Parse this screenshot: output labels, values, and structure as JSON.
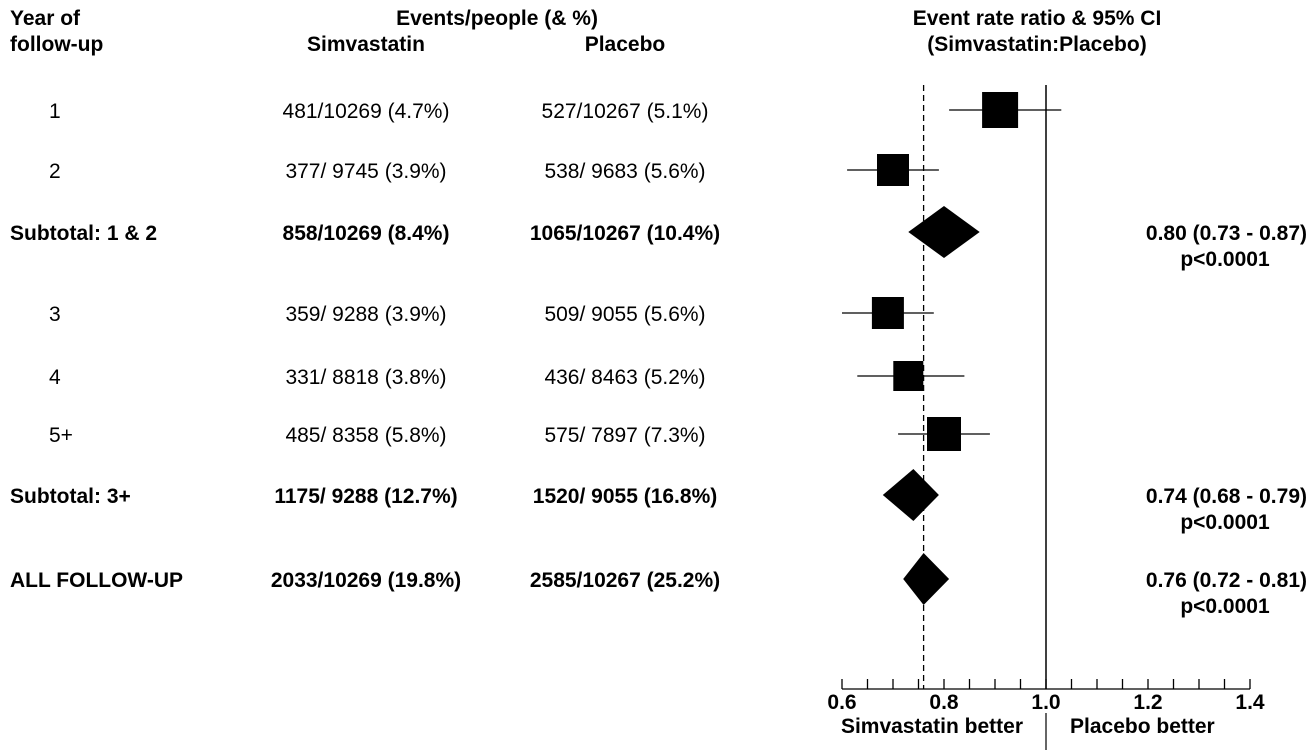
{
  "chart_data": {
    "type": "forest",
    "headers": {
      "year_col": [
        "Year of",
        "follow-up"
      ],
      "events_group": "Events/people (& %)",
      "simvastatin_col": "Simvastatin",
      "placebo_col": "Placebo",
      "ratio_title": [
        "Event rate ratio & 95% CI",
        "(Simvastatin:Placebo)"
      ]
    },
    "rows": [
      {
        "label": "1",
        "kind": "square",
        "bold": false,
        "simvastatin": "481/10269 (4.7%)",
        "placebo": "527/10267 (5.1%)",
        "estimate": 0.91,
        "ci_low": 0.81,
        "ci_high": 1.03,
        "marker_size": 36,
        "result": null,
        "p": null
      },
      {
        "label": "2",
        "kind": "square",
        "bold": false,
        "simvastatin": "377/  9745 (3.9%)",
        "placebo": "538/  9683 (5.6%)",
        "estimate": 0.7,
        "ci_low": 0.61,
        "ci_high": 0.79,
        "marker_size": 32,
        "result": null,
        "p": null
      },
      {
        "label": "Subtotal: 1 & 2",
        "kind": "diamond",
        "bold": true,
        "simvastatin": "858/10269 (8.4%)",
        "placebo": "1065/10267 (10.4%)",
        "estimate": 0.8,
        "ci_low": 0.73,
        "ci_high": 0.87,
        "result": "0.80 (0.73 - 0.87)",
        "p": "p<0.0001"
      },
      {
        "label": "3",
        "kind": "square",
        "bold": false,
        "simvastatin": "359/  9288 (3.9%)",
        "placebo": "509/  9055 (5.6%)",
        "estimate": 0.69,
        "ci_low": 0.6,
        "ci_high": 0.78,
        "marker_size": 32,
        "result": null,
        "p": null
      },
      {
        "label": "4",
        "kind": "square",
        "bold": false,
        "simvastatin": "331/  8818 (3.8%)",
        "placebo": "436/  8463 (5.2%)",
        "estimate": 0.73,
        "ci_low": 0.63,
        "ci_high": 0.84,
        "marker_size": 30,
        "result": null,
        "p": null
      },
      {
        "label": "5+",
        "kind": "square",
        "bold": false,
        "simvastatin": "485/  8358 (5.8%)",
        "placebo": "575/  7897 (7.3%)",
        "estimate": 0.8,
        "ci_low": 0.71,
        "ci_high": 0.89,
        "marker_size": 34,
        "result": null,
        "p": null
      },
      {
        "label": "Subtotal: 3+",
        "kind": "diamond",
        "bold": true,
        "simvastatin": "1175/  9288 (12.7%)",
        "placebo": "1520/  9055 (16.8%)",
        "estimate": 0.74,
        "ci_low": 0.68,
        "ci_high": 0.79,
        "result": "0.74 (0.68 - 0.79)",
        "p": "p<0.0001"
      },
      {
        "label": "ALL FOLLOW-UP",
        "kind": "diamond",
        "bold": true,
        "simvastatin": "2033/10269 (19.8%)",
        "placebo": "2585/10267 (25.2%)",
        "estimate": 0.76,
        "ci_low": 0.72,
        "ci_high": 0.81,
        "result": "0.76 (0.72 - 0.81)",
        "p": "p<0.0001"
      }
    ],
    "x_axis": {
      "min": 0.6,
      "max": 1.4,
      "major_ticks": [
        0.6,
        0.8,
        1.0,
        1.2,
        1.4
      ],
      "tick_labels": [
        "0.6",
        "0.8",
        "1.0",
        "1.2",
        "1.4"
      ],
      "minor_step": 0.05
    },
    "reference_line": 1.0,
    "overall_line": 0.76,
    "better_labels": [
      "Simvastatin better",
      "Placebo better"
    ]
  }
}
